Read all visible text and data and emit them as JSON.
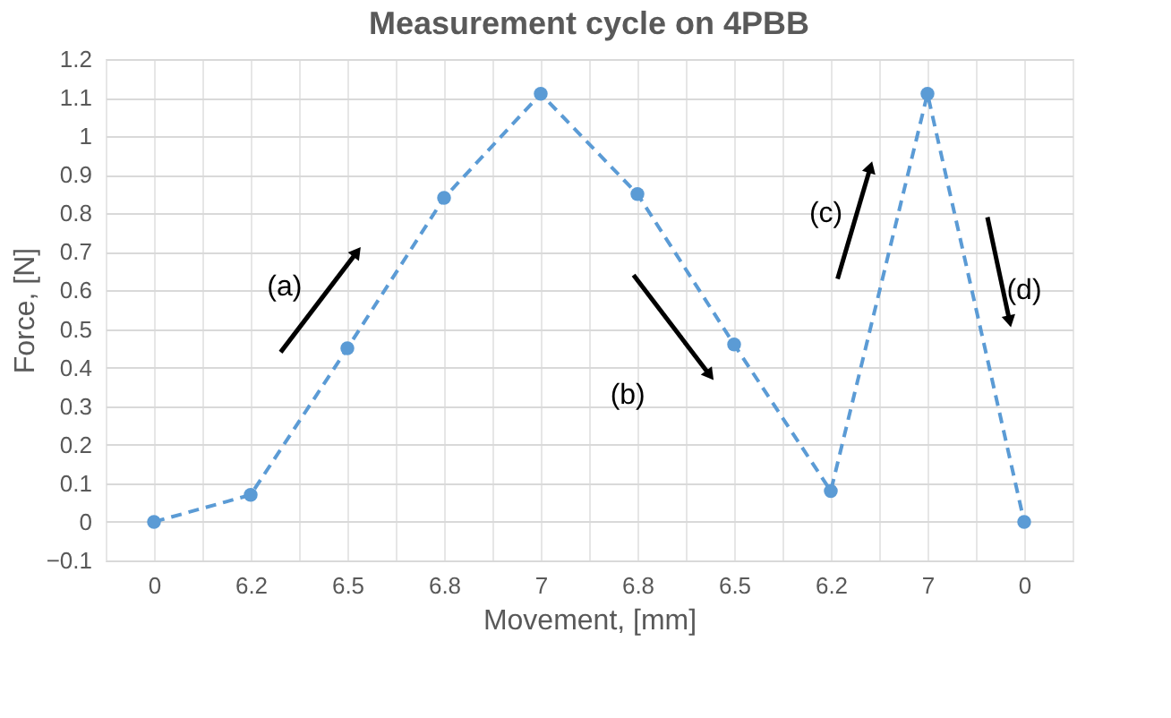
{
  "chart_data": {
    "type": "line",
    "title": "Measurement cycle on 4PBB",
    "xlabel": "Movement, [mm]",
    "ylabel": "Force, [N]",
    "categories": [
      "0",
      "6.2",
      "6.5",
      "6.8",
      "7",
      "6.8",
      "6.5",
      "6.2",
      "7",
      "0"
    ],
    "series": [
      {
        "color": "#5b9bd5",
        "values": [
          0,
          0.07,
          0.45,
          0.84,
          1.11,
          0.85,
          0.46,
          0.08,
          1.11,
          0
        ]
      }
    ],
    "ylim": [
      -0.1,
      1.2
    ],
    "yticks": [
      -0.1,
      0,
      0.1,
      0.2,
      0.3,
      0.4,
      0.5,
      0.6,
      0.7,
      0.8,
      0.9,
      1,
      1.1,
      1.2
    ],
    "grid": true,
    "marker": "circle",
    "line_style": "dashed",
    "annotations": [
      "(a)",
      "(b)",
      "(c)",
      "(d)"
    ]
  }
}
